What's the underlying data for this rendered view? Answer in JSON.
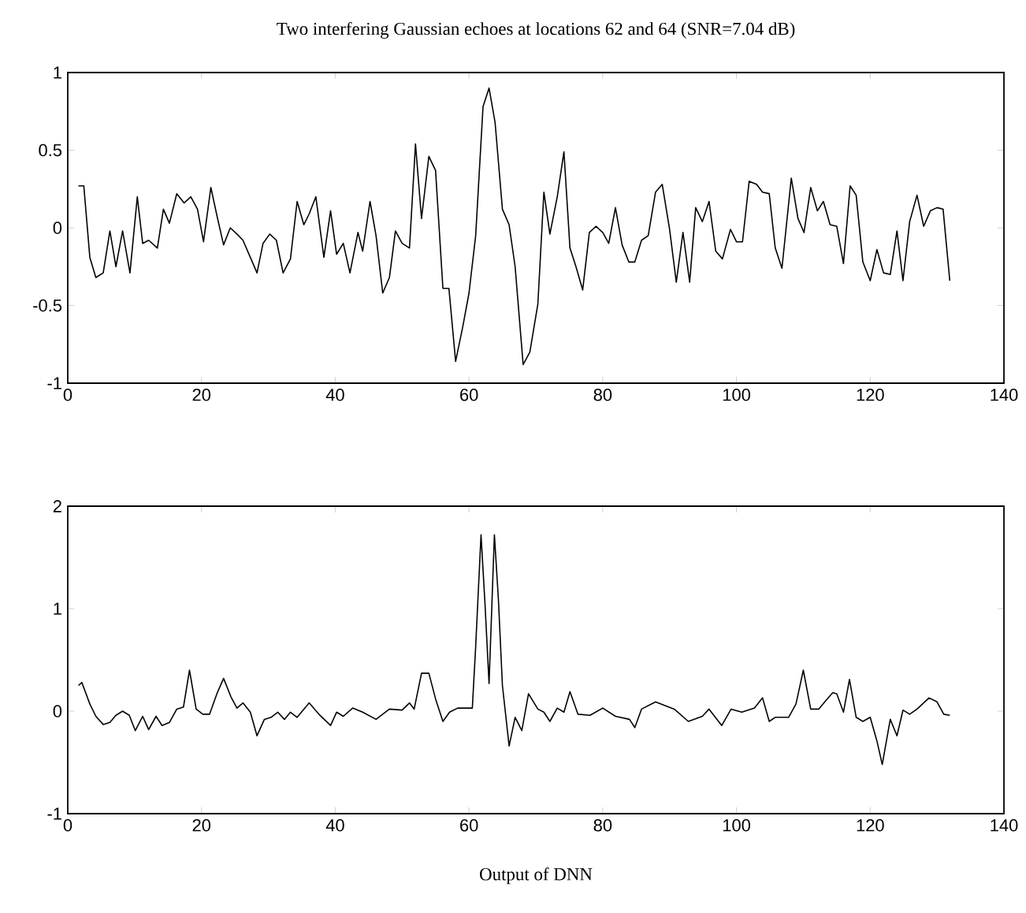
{
  "chart_data": [
    {
      "type": "line",
      "title": "Two interfering Gaussian echoes at locations 62 and 64 (SNR=7.04 dB)",
      "color": "#000000",
      "x": [
        1.6,
        2.4,
        3.3,
        4.2,
        5.3,
        6.3,
        7.2,
        8.2,
        9.3,
        10.4,
        11.2,
        12.1,
        13.4,
        14.3,
        15.2,
        16.3,
        17.4,
        18.4,
        19.4,
        20.3,
        21.4,
        22.3,
        23.3,
        24.3,
        25.3,
        26.2,
        27.3,
        28.3,
        29.2,
        30.2,
        31.2,
        32.2,
        33.3,
        34.3,
        35.3,
        36.1,
        37.1,
        38.3,
        39.3,
        40.2,
        41.2,
        42.2,
        43.4,
        44.1,
        45.2,
        46.1,
        47.1,
        48.1,
        49.0,
        50.0,
        51.1,
        52.0,
        52.9,
        54.0,
        55.0,
        56.1,
        57.0,
        58.0,
        59.1,
        60.0,
        61.0,
        62.1,
        63.0,
        63.9,
        65.0,
        66.0,
        66.9,
        68.1,
        69.1,
        70.3,
        71.2,
        72.1,
        73.2,
        74.2,
        75.1,
        76.0,
        77.0,
        78.0,
        79.0,
        80.0,
        80.9,
        81.9,
        82.9,
        83.9,
        84.8,
        85.8,
        86.8,
        87.9,
        88.9,
        90.0,
        91.0,
        92.0,
        93.0,
        93.9,
        94.9,
        95.9,
        96.9,
        97.9,
        99.1,
        100.0,
        100.9,
        101.9,
        103.0,
        103.9,
        104.9,
        105.8,
        106.8,
        108.2,
        109.2,
        110.1,
        111.1,
        112.1,
        113.0,
        114.0,
        115.0,
        116.0,
        117.0,
        117.9,
        118.9,
        120.0,
        121.0,
        122.0,
        123.0,
        124.0,
        124.9,
        125.9,
        127.0,
        128.0,
        129.0,
        130.0,
        130.9,
        131.9
      ],
      "values": [
        0.27,
        0.27,
        -0.19,
        -0.32,
        -0.29,
        -0.02,
        -0.25,
        -0.02,
        -0.29,
        0.2,
        -0.1,
        -0.08,
        -0.13,
        0.12,
        0.03,
        0.22,
        0.16,
        0.2,
        0.12,
        -0.09,
        0.26,
        0.08,
        -0.11,
        0.0,
        -0.04,
        -0.08,
        -0.19,
        -0.29,
        -0.1,
        -0.04,
        -0.08,
        -0.29,
        -0.2,
        0.17,
        0.02,
        0.09,
        0.2,
        -0.19,
        0.11,
        -0.17,
        -0.1,
        -0.29,
        -0.03,
        -0.15,
        0.17,
        -0.05,
        -0.42,
        -0.32,
        -0.02,
        -0.1,
        -0.13,
        0.54,
        0.06,
        0.46,
        0.37,
        -0.39,
        -0.39,
        -0.86,
        -0.63,
        -0.42,
        -0.05,
        0.78,
        0.9,
        0.68,
        0.12,
        0.02,
        -0.25,
        -0.88,
        -0.8,
        -0.49,
        0.23,
        -0.04,
        0.2,
        0.49,
        -0.13,
        -0.25,
        -0.4,
        -0.03,
        0.01,
        -0.03,
        -0.1,
        0.13,
        -0.11,
        -0.22,
        -0.22,
        -0.08,
        -0.05,
        0.23,
        0.28,
        -0.01,
        -0.35,
        -0.03,
        -0.35,
        0.13,
        0.04,
        0.17,
        -0.15,
        -0.2,
        -0.01,
        -0.09,
        -0.09,
        0.3,
        0.28,
        0.23,
        0.22,
        -0.13,
        -0.26,
        0.32,
        0.06,
        -0.03,
        0.26,
        0.11,
        0.17,
        0.02,
        0.01,
        -0.23,
        0.27,
        0.21,
        -0.22,
        -0.34,
        -0.14,
        -0.29,
        -0.3,
        -0.02,
        -0.34,
        0.04,
        0.21,
        0.01,
        0.11,
        0.13,
        0.12,
        -0.34
      ],
      "xlim": [
        0,
        140
      ],
      "ylim": [
        -1,
        1
      ],
      "xticks": [
        0,
        20,
        40,
        60,
        80,
        100,
        120,
        140
      ],
      "yticks": [
        -1,
        -0.5,
        0,
        0.5,
        1
      ]
    },
    {
      "type": "line",
      "xlabel": "Output of DNN",
      "color": "#000000",
      "x": [
        1.6,
        2.1,
        3.3,
        4.2,
        5.3,
        6.3,
        7.2,
        8.2,
        9.2,
        10.1,
        11.2,
        12.1,
        13.2,
        14.1,
        15.2,
        16.3,
        17.3,
        18.2,
        19.2,
        20.2,
        21.2,
        22.3,
        23.3,
        24.4,
        25.3,
        26.2,
        27.3,
        28.3,
        29.4,
        30.4,
        31.4,
        32.4,
        33.3,
        34.3,
        36.1,
        37.7,
        39.3,
        40.2,
        41.2,
        42.6,
        44.1,
        46.1,
        48.1,
        50.0,
        51.1,
        51.8,
        52.9,
        54.0,
        55.0,
        56.1,
        57.1,
        58.3,
        60.5,
        61.0,
        61.8,
        62.4,
        63.0,
        63.8,
        64.4,
        65.0,
        66.0,
        66.9,
        67.9,
        68.9,
        70.3,
        71.2,
        72.1,
        73.2,
        74.2,
        75.1,
        76.3,
        78.1,
        80.0,
        81.9,
        84.0,
        84.8,
        85.8,
        87.9,
        90.7,
        92.8,
        94.9,
        95.9,
        97.8,
        99.2,
        100.8,
        102.7,
        103.9,
        104.9,
        105.8,
        107.8,
        108.9,
        110.0,
        111.1,
        112.3,
        113.2,
        114.4,
        115.0,
        116.0,
        116.9,
        117.9,
        118.9,
        120.0,
        121.0,
        121.8,
        123.0,
        124.0,
        124.9,
        125.9,
        127.0,
        128.8,
        130.0,
        131.0,
        131.9
      ],
      "values": [
        0.25,
        0.28,
        0.07,
        -0.05,
        -0.13,
        -0.11,
        -0.04,
        0.0,
        -0.04,
        -0.19,
        -0.05,
        -0.18,
        -0.05,
        -0.14,
        -0.11,
        0.02,
        0.04,
        0.4,
        0.02,
        -0.03,
        -0.03,
        0.17,
        0.32,
        0.14,
        0.03,
        0.08,
        -0.01,
        -0.24,
        -0.08,
        -0.06,
        -0.01,
        -0.08,
        -0.01,
        -0.06,
        0.08,
        -0.04,
        -0.14,
        -0.01,
        -0.05,
        0.03,
        -0.01,
        -0.08,
        0.02,
        0.01,
        0.08,
        0.02,
        0.37,
        0.37,
        0.12,
        -0.1,
        -0.01,
        0.03,
        0.03,
        0.63,
        1.72,
        1.04,
        0.27,
        1.72,
        1.09,
        0.25,
        -0.34,
        -0.06,
        -0.19,
        0.17,
        0.02,
        -0.01,
        -0.1,
        0.03,
        -0.01,
        0.19,
        -0.03,
        -0.04,
        0.03,
        -0.05,
        -0.08,
        -0.16,
        0.02,
        0.09,
        0.02,
        -0.1,
        -0.05,
        0.02,
        -0.14,
        0.02,
        -0.01,
        0.03,
        0.13,
        -0.1,
        -0.06,
        -0.06,
        0.07,
        0.4,
        0.02,
        0.02,
        0.09,
        0.18,
        0.17,
        -0.01,
        0.31,
        -0.06,
        -0.1,
        -0.06,
        -0.29,
        -0.52,
        -0.08,
        -0.24,
        0.01,
        -0.03,
        0.02,
        0.13,
        0.09,
        -0.03,
        -0.04
      ],
      "xlim": [
        0,
        140
      ],
      "ylim": [
        -1,
        2
      ],
      "xticks": [
        0,
        20,
        40,
        60,
        80,
        100,
        120,
        140
      ],
      "yticks": [
        -1,
        0,
        1,
        2
      ]
    }
  ]
}
